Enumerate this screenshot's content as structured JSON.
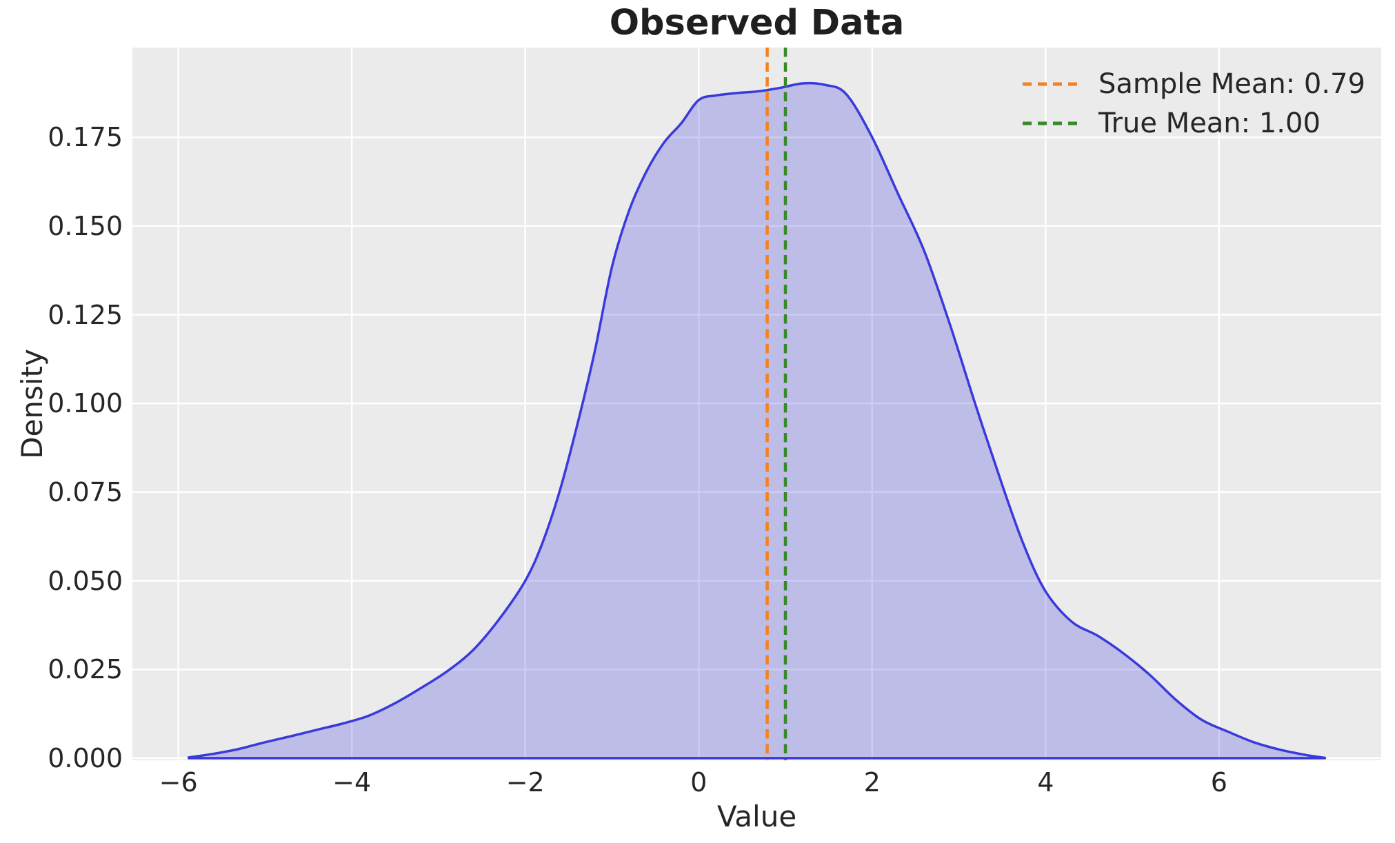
{
  "title": "Observed Data",
  "axes": {
    "xlabel": "Value",
    "ylabel": "Density",
    "background_color": "#ebebeb",
    "grid_color": "#ffffff",
    "text_color": "#262626",
    "x_ticks": [
      {
        "value": -6,
        "label": "−6"
      },
      {
        "value": -4,
        "label": "−4"
      },
      {
        "value": -2,
        "label": "−2"
      },
      {
        "value": 0,
        "label": "0"
      },
      {
        "value": 2,
        "label": "2"
      },
      {
        "value": 4,
        "label": "4"
      },
      {
        "value": 6,
        "label": "6"
      }
    ],
    "y_ticks": [
      {
        "value": 0.0,
        "label": "0.000"
      },
      {
        "value": 0.025,
        "label": "0.025"
      },
      {
        "value": 0.05,
        "label": "0.050"
      },
      {
        "value": 0.075,
        "label": "0.075"
      },
      {
        "value": 0.1,
        "label": "0.100"
      },
      {
        "value": 0.125,
        "label": "0.125"
      },
      {
        "value": 0.15,
        "label": "0.150"
      },
      {
        "value": 0.175,
        "label": "0.175"
      }
    ]
  },
  "legend": {
    "entries": [
      {
        "label": "Sample Mean: 0.79",
        "color": "#f6821f",
        "linestyle": "dashed"
      },
      {
        "label": "True Mean: 1.00",
        "color": "#388a28",
        "linestyle": "dashed"
      }
    ]
  },
  "chart_data": {
    "type": "area",
    "title": "Observed Data",
    "xlabel": "Value",
    "ylabel": "Density",
    "xlim": [
      -6.53,
      7.87
    ],
    "ylim": [
      -0.0006,
      0.2003
    ],
    "grid": true,
    "legend_position": "upper right",
    "series": [
      {
        "name": "kde-density",
        "type": "density_curve",
        "line_color": "#3a3adc",
        "fill_color_rgba": "rgba(58,58,220,0.26)",
        "points": [
          [
            -5.88,
            0.0002
          ],
          [
            -5.6,
            0.0012
          ],
          [
            -5.3,
            0.0026
          ],
          [
            -5.0,
            0.0045
          ],
          [
            -4.7,
            0.0062
          ],
          [
            -4.4,
            0.008
          ],
          [
            -4.1,
            0.0098
          ],
          [
            -3.8,
            0.012
          ],
          [
            -3.5,
            0.0155
          ],
          [
            -3.2,
            0.0198
          ],
          [
            -2.9,
            0.0245
          ],
          [
            -2.6,
            0.0305
          ],
          [
            -2.3,
            0.0392
          ],
          [
            -2.0,
            0.05
          ],
          [
            -1.8,
            0.0608
          ],
          [
            -1.6,
            0.0755
          ],
          [
            -1.4,
            0.094
          ],
          [
            -1.2,
            0.1145
          ],
          [
            -1.0,
            0.1385
          ],
          [
            -0.8,
            0.1545
          ],
          [
            -0.6,
            0.1655
          ],
          [
            -0.4,
            0.1735
          ],
          [
            -0.2,
            0.179
          ],
          [
            0.0,
            0.1855
          ],
          [
            0.2,
            0.1868
          ],
          [
            0.45,
            0.1875
          ],
          [
            0.7,
            0.188
          ],
          [
            0.95,
            0.189
          ],
          [
            1.2,
            0.1902
          ],
          [
            1.45,
            0.1898
          ],
          [
            1.7,
            0.1872
          ],
          [
            2.0,
            0.175
          ],
          [
            2.3,
            0.159
          ],
          [
            2.6,
            0.143
          ],
          [
            2.9,
            0.122
          ],
          [
            3.2,
            0.099
          ],
          [
            3.5,
            0.077
          ],
          [
            3.75,
            0.06
          ],
          [
            4.0,
            0.047
          ],
          [
            4.3,
            0.0385
          ],
          [
            4.6,
            0.0345
          ],
          [
            4.9,
            0.0295
          ],
          [
            5.2,
            0.0235
          ],
          [
            5.5,
            0.0165
          ],
          [
            5.8,
            0.0108
          ],
          [
            6.1,
            0.0075
          ],
          [
            6.4,
            0.0045
          ],
          [
            6.7,
            0.0024
          ],
          [
            7.0,
            0.0009
          ],
          [
            7.22,
            0.0001
          ]
        ]
      },
      {
        "name": "sample-mean-line",
        "type": "vline",
        "x": 0.79,
        "color": "#f6821f",
        "linestyle": "dashed"
      },
      {
        "name": "true-mean-line",
        "type": "vline",
        "x": 1.0,
        "color": "#388a28",
        "linestyle": "dashed"
      }
    ]
  }
}
